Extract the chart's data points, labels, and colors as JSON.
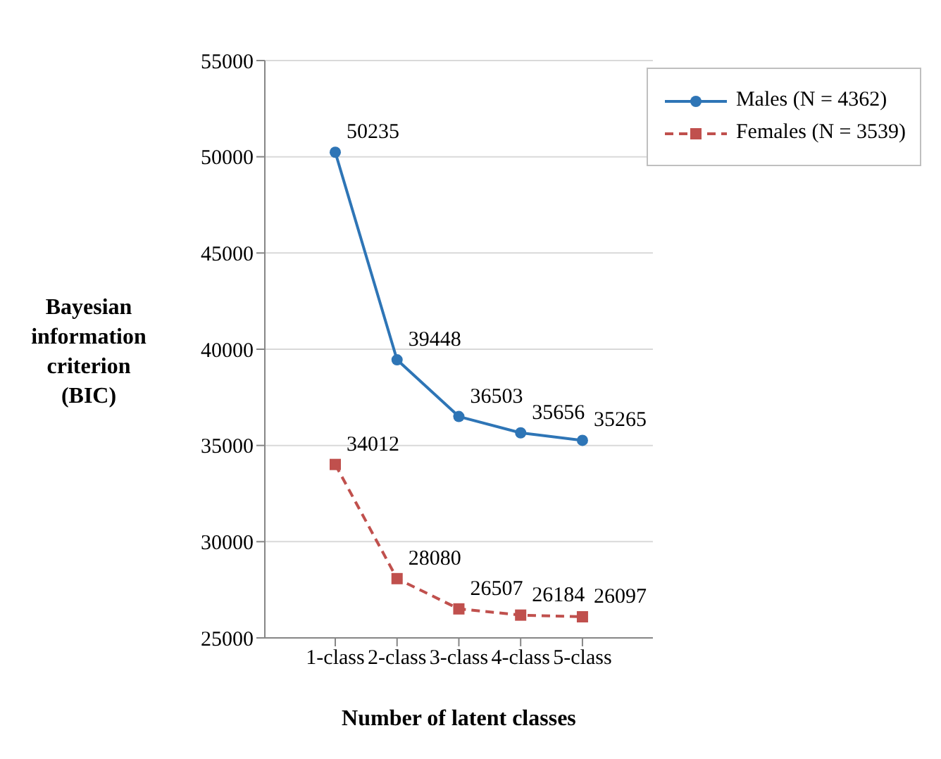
{
  "chart_data": {
    "type": "line",
    "xlabel": "Number of latent classes",
    "ylabel": "Bayesian information criterion (BIC)",
    "categories": [
      "1-class",
      "2-class",
      "3-class",
      "4-class",
      "5-class"
    ],
    "series": [
      {
        "name": "Males (N = 4362)",
        "color": "#2e75b6",
        "values": [
          50235,
          39448,
          36503,
          35656,
          35265
        ],
        "marker": "circle",
        "line_style": "solid"
      },
      {
        "name": "Females (N = 3539)",
        "color": "#c0504d",
        "values": [
          34012,
          28080,
          26507,
          26184,
          26097
        ],
        "marker": "square",
        "line_style": "dashed"
      }
    ],
    "ylim": [
      25000,
      55000
    ],
    "yticks": [
      25000,
      30000,
      35000,
      40000,
      45000,
      50000,
      55000
    ],
    "grid": "y",
    "legend": "top right",
    "data_labels": true
  }
}
